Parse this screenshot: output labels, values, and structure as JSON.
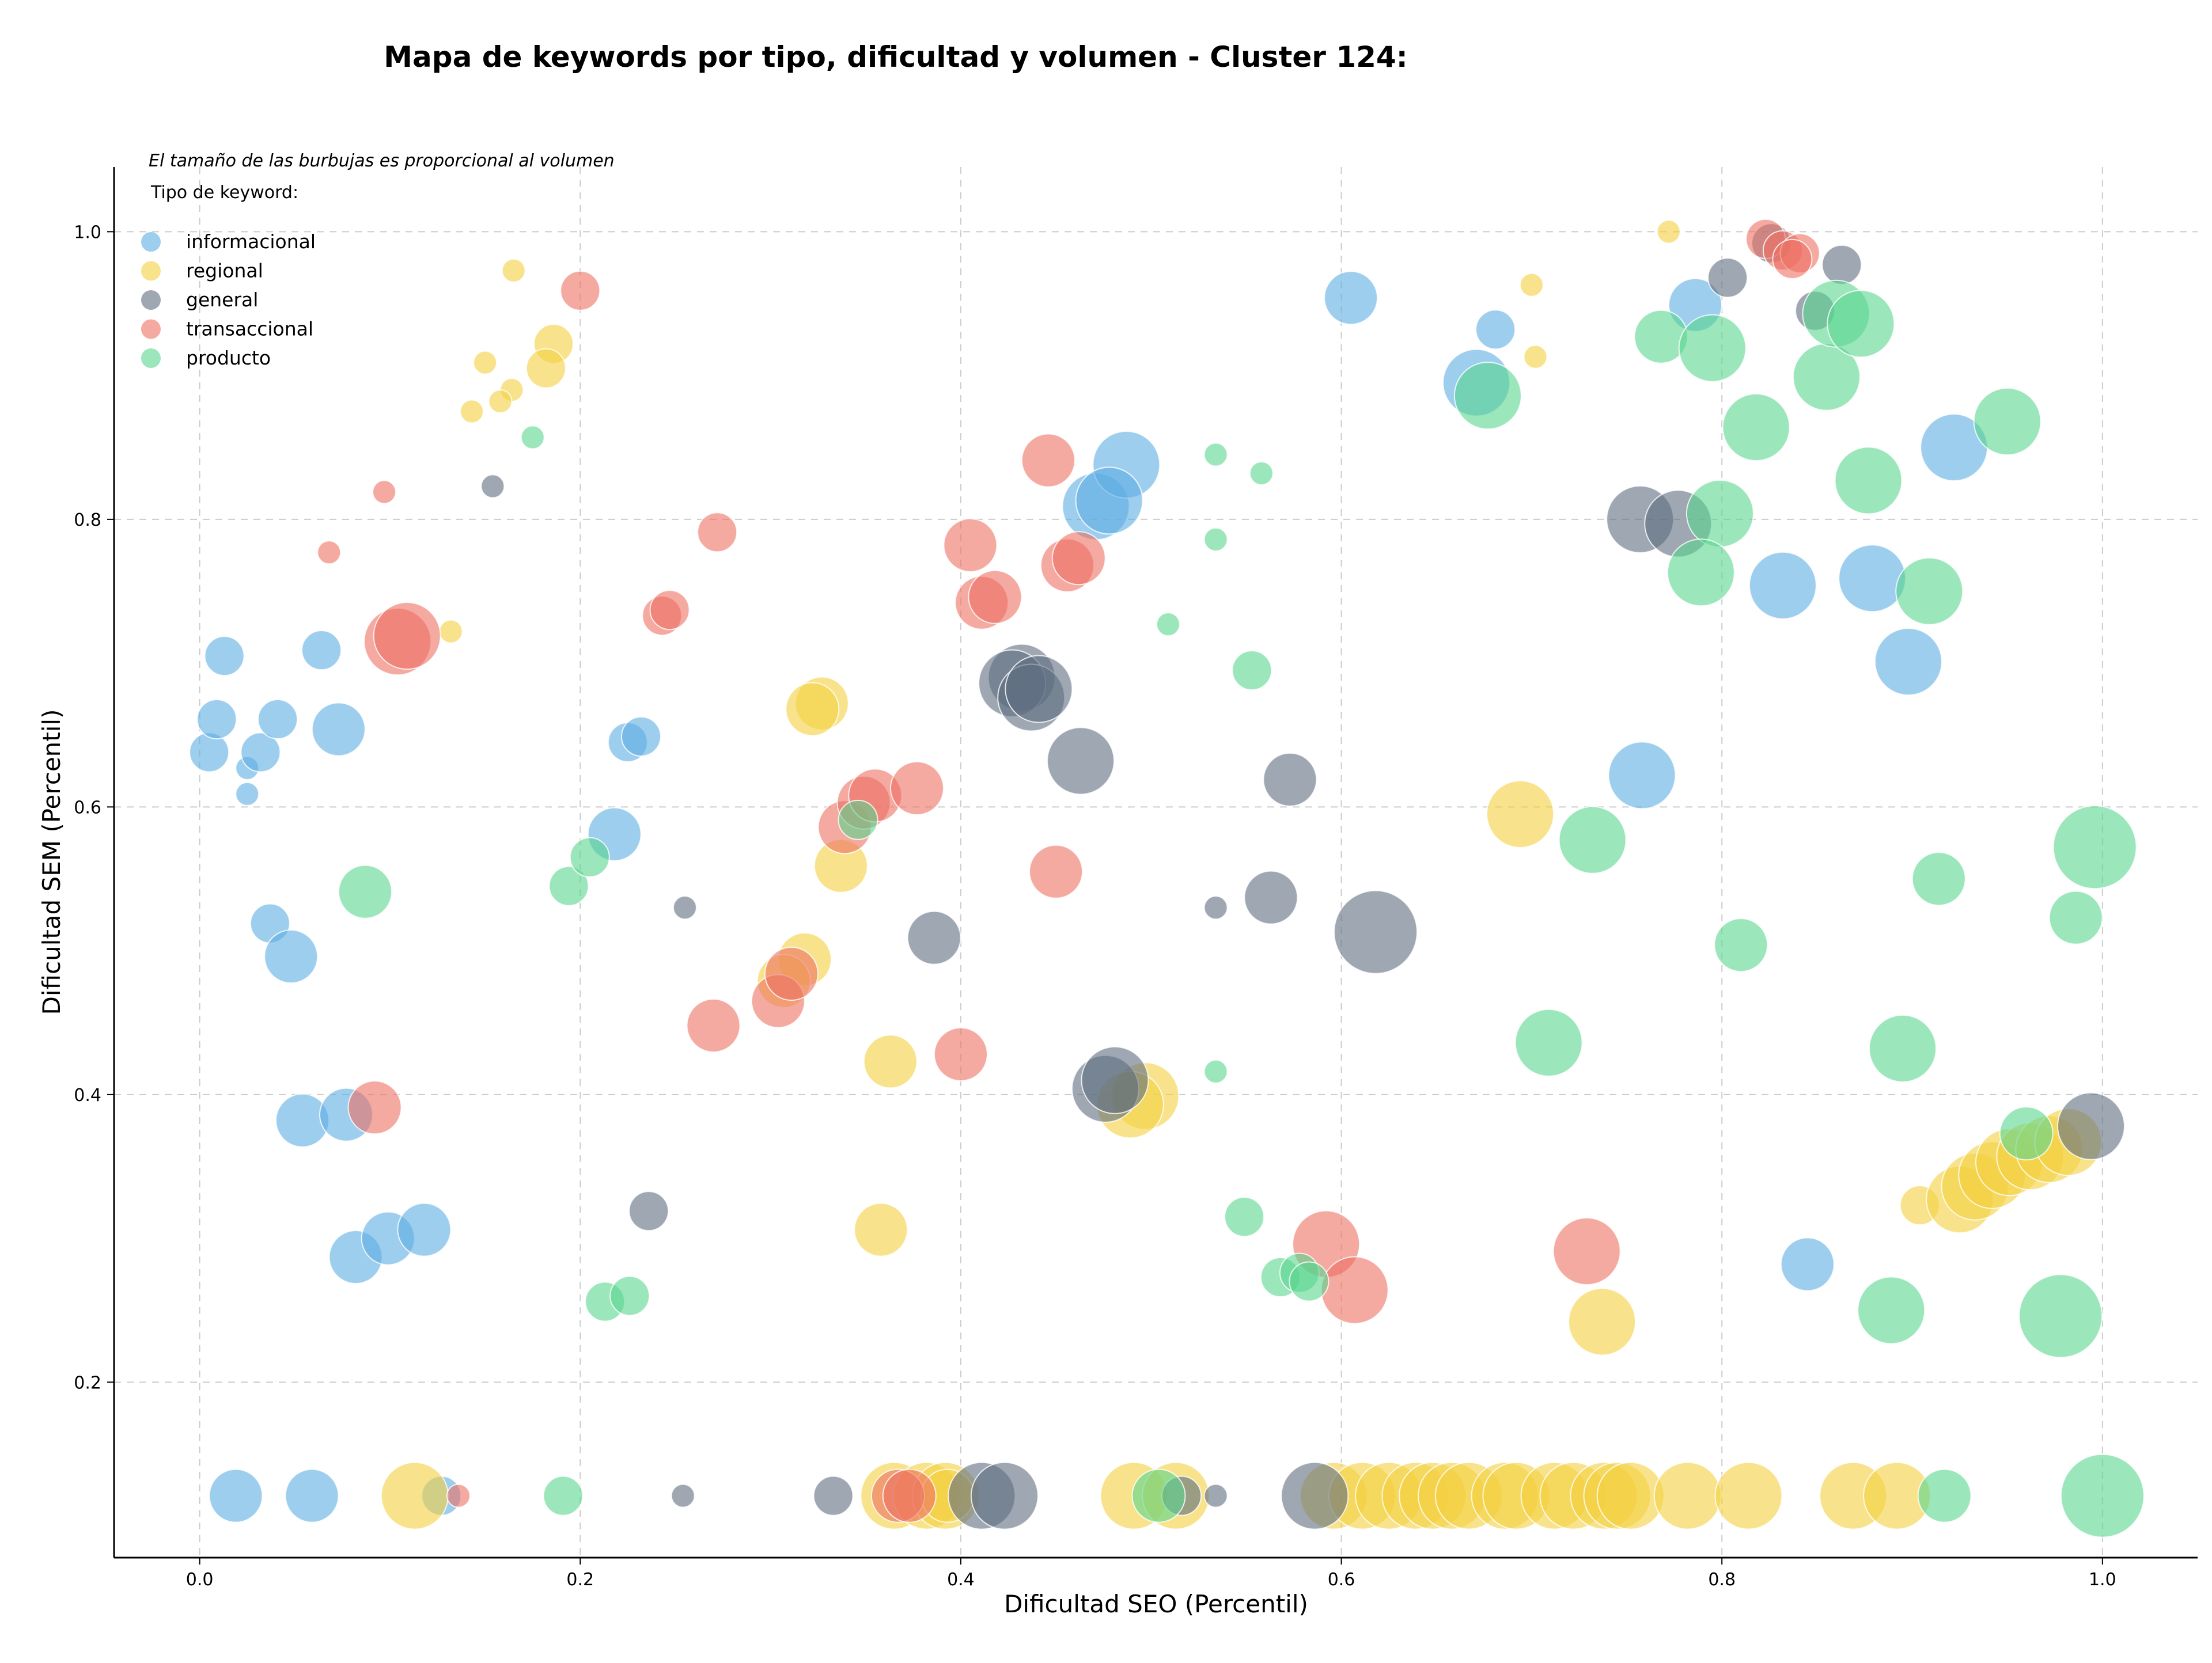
{
  "chart_data": {
    "type": "scatter",
    "title": "Mapa de keywords por tipo, dificultad y volumen - Cluster 124:",
    "annotation": "El tamaño de las burbujas es proporcional al volumen",
    "xlabel": "Dificultad SEO (Percentil)",
    "ylabel": "Dificultad SEM (Percentil)",
    "xlim": [
      -0.045,
      1.05
    ],
    "ylim": [
      0.078,
      1.045
    ],
    "xticks": [
      "0.0",
      "0.2",
      "0.4",
      "0.6",
      "0.8",
      "1.0"
    ],
    "yticks": [
      "0.2",
      "0.4",
      "0.6",
      "0.8",
      "1.0"
    ],
    "grid": true,
    "legend_title": "Tipo de keyword:",
    "legend_position": "top-left",
    "series": [
      {
        "name": "informacional",
        "color": "#5DADE2",
        "points": [
          [
            0.005,
            0.638,
            2
          ],
          [
            0.009,
            0.661,
            2
          ],
          [
            0.013,
            0.705,
            2
          ],
          [
            0.025,
            0.627,
            1
          ],
          [
            0.025,
            0.609,
            1
          ],
          [
            0.032,
            0.638,
            2
          ],
          [
            0.041,
            0.661,
            2
          ],
          [
            0.037,
            0.519,
            2
          ],
          [
            0.048,
            0.496,
            3
          ],
          [
            0.064,
            0.709,
            2
          ],
          [
            0.073,
            0.654,
            3
          ],
          [
            0.054,
            0.382,
            3
          ],
          [
            0.077,
            0.386,
            3
          ],
          [
            0.082,
            0.287,
            3
          ],
          [
            0.099,
            0.3,
            3
          ],
          [
            0.118,
            0.306,
            3
          ],
          [
            0.019,
            0.121,
            3
          ],
          [
            0.059,
            0.121,
            3
          ],
          [
            0.127,
            0.121,
            2
          ],
          [
            0.218,
            0.581,
            3
          ],
          [
            0.225,
            0.645,
            2
          ],
          [
            0.232,
            0.649,
            2
          ],
          [
            0.471,
            0.809,
            4
          ],
          [
            0.487,
            0.838,
            4
          ],
          [
            0.478,
            0.813,
            4
          ],
          [
            0.605,
            0.954,
            3
          ],
          [
            0.671,
            0.895,
            4
          ],
          [
            0.681,
            0.932,
            2
          ],
          [
            0.786,
            0.949,
            3
          ],
          [
            0.832,
            0.754,
            4
          ],
          [
            0.879,
            0.759,
            4
          ],
          [
            0.898,
            0.701,
            4
          ],
          [
            0.922,
            0.85,
            4
          ],
          [
            0.758,
            0.622,
            4
          ],
          [
            0.845,
            0.282,
            3
          ]
        ]
      },
      {
        "name": "regional",
        "color": "#F4D03F",
        "points": [
          [
            0.165,
            0.973,
            1
          ],
          [
            0.15,
            0.909,
            1
          ],
          [
            0.164,
            0.89,
            1
          ],
          [
            0.158,
            0.882,
            1
          ],
          [
            0.143,
            0.875,
            1
          ],
          [
            0.186,
            0.922,
            2
          ],
          [
            0.182,
            0.905,
            2
          ],
          [
            0.132,
            0.722,
            1
          ],
          [
            0.327,
            0.672,
            3
          ],
          [
            0.322,
            0.668,
            3
          ],
          [
            0.337,
            0.559,
            3
          ],
          [
            0.318,
            0.494,
            3
          ],
          [
            0.307,
            0.479,
            3
          ],
          [
            0.363,
            0.423,
            3
          ],
          [
            0.358,
            0.306,
            3
          ],
          [
            0.497,
            0.399,
            4
          ],
          [
            0.489,
            0.393,
            4
          ],
          [
            0.7,
            0.963,
            1
          ],
          [
            0.702,
            0.913,
            1
          ],
          [
            0.772,
            1.0,
            1
          ],
          [
            0.694,
            0.595,
            4
          ],
          [
            0.737,
            0.242,
            4
          ],
          [
            0.904,
            0.323,
            2
          ],
          [
            0.925,
            0.327,
            4
          ],
          [
            0.933,
            0.336,
            4
          ],
          [
            0.942,
            0.344,
            4
          ],
          [
            0.951,
            0.353,
            4
          ],
          [
            0.962,
            0.357,
            4
          ],
          [
            0.972,
            0.362,
            4
          ],
          [
            0.982,
            0.367,
            4
          ],
          [
            0.113,
            0.121,
            4
          ],
          [
            0.365,
            0.121,
            4
          ],
          [
            0.382,
            0.121,
            4
          ],
          [
            0.392,
            0.121,
            4
          ],
          [
            0.393,
            0.121,
            3
          ],
          [
            0.491,
            0.121,
            4
          ],
          [
            0.513,
            0.121,
            4
          ],
          [
            0.596,
            0.121,
            4
          ],
          [
            0.611,
            0.121,
            4
          ],
          [
            0.625,
            0.121,
            4
          ],
          [
            0.639,
            0.121,
            4
          ],
          [
            0.648,
            0.121,
            4
          ],
          [
            0.658,
            0.121,
            4
          ],
          [
            0.667,
            0.121,
            4
          ],
          [
            0.686,
            0.121,
            4
          ],
          [
            0.692,
            0.121,
            4
          ],
          [
            0.712,
            0.121,
            4
          ],
          [
            0.722,
            0.121,
            4
          ],
          [
            0.738,
            0.121,
            4
          ],
          [
            0.745,
            0.121,
            4
          ],
          [
            0.752,
            0.121,
            4
          ],
          [
            0.782,
            0.121,
            4
          ],
          [
            0.814,
            0.121,
            4
          ],
          [
            0.869,
            0.121,
            4
          ],
          [
            0.892,
            0.121,
            4
          ]
        ]
      },
      {
        "name": "general",
        "color": "#5D6D7E",
        "points": [
          [
            0.154,
            0.823,
            1
          ],
          [
            0.255,
            0.53,
            1
          ],
          [
            0.236,
            0.319,
            2
          ],
          [
            0.386,
            0.509,
            3
          ],
          [
            0.432,
            0.69,
            4
          ],
          [
            0.427,
            0.686,
            4
          ],
          [
            0.437,
            0.676,
            4
          ],
          [
            0.441,
            0.682,
            4
          ],
          [
            0.463,
            0.632,
            4
          ],
          [
            0.476,
            0.404,
            4
          ],
          [
            0.481,
            0.41,
            4
          ],
          [
            0.534,
            0.53,
            1
          ],
          [
            0.563,
            0.537,
            3
          ],
          [
            0.573,
            0.619,
            3
          ],
          [
            0.618,
            0.513,
            5
          ],
          [
            0.757,
            0.8,
            4
          ],
          [
            0.777,
            0.797,
            4
          ],
          [
            0.803,
            0.968,
            2
          ],
          [
            0.826,
            0.992,
            2
          ],
          [
            0.849,
            0.945,
            2
          ],
          [
            0.863,
            0.977,
            2
          ],
          [
            0.994,
            0.378,
            4
          ],
          [
            0.254,
            0.121,
            1
          ],
          [
            0.333,
            0.121,
            2
          ],
          [
            0.411,
            0.121,
            4
          ],
          [
            0.423,
            0.121,
            4
          ],
          [
            0.516,
            0.121,
            2
          ],
          [
            0.534,
            0.121,
            1
          ],
          [
            0.586,
            0.121,
            4
          ]
        ]
      },
      {
        "name": "transaccional",
        "color": "#EC7063",
        "points": [
          [
            0.097,
            0.819,
            1
          ],
          [
            0.068,
            0.777,
            1
          ],
          [
            0.2,
            0.959,
            2
          ],
          [
            0.104,
            0.715,
            4
          ],
          [
            0.109,
            0.719,
            4
          ],
          [
            0.272,
            0.791,
            2
          ],
          [
            0.243,
            0.733,
            2
          ],
          [
            0.247,
            0.737,
            2
          ],
          [
            0.304,
            0.465,
            3
          ],
          [
            0.27,
            0.448,
            3
          ],
          [
            0.311,
            0.484,
            3
          ],
          [
            0.339,
            0.586,
            3
          ],
          [
            0.349,
            0.603,
            3
          ],
          [
            0.355,
            0.608,
            3
          ],
          [
            0.377,
            0.613,
            3
          ],
          [
            0.405,
            0.782,
            3
          ],
          [
            0.411,
            0.742,
            3
          ],
          [
            0.418,
            0.746,
            3
          ],
          [
            0.4,
            0.428,
            3
          ],
          [
            0.446,
            0.841,
            3
          ],
          [
            0.456,
            0.768,
            3
          ],
          [
            0.462,
            0.773,
            3
          ],
          [
            0.45,
            0.555,
            3
          ],
          [
            0.092,
            0.391,
            3
          ],
          [
            0.592,
            0.296,
            4
          ],
          [
            0.607,
            0.264,
            4
          ],
          [
            0.729,
            0.291,
            4
          ],
          [
            0.823,
            0.995,
            2
          ],
          [
            0.832,
            0.987,
            2
          ],
          [
            0.841,
            0.985,
            2
          ],
          [
            0.837,
            0.981,
            2
          ],
          [
            0.136,
            0.121,
            1
          ],
          [
            0.367,
            0.121,
            3
          ],
          [
            0.373,
            0.121,
            3
          ]
        ]
      },
      {
        "name": "producto",
        "color": "#58D68D",
        "points": [
          [
            0.175,
            0.857,
            1
          ],
          [
            0.087,
            0.541,
            3
          ],
          [
            0.194,
            0.545,
            2
          ],
          [
            0.205,
            0.565,
            2
          ],
          [
            0.213,
            0.256,
            2
          ],
          [
            0.226,
            0.26,
            2
          ],
          [
            0.346,
            0.591,
            2
          ],
          [
            0.509,
            0.727,
            1
          ],
          [
            0.534,
            0.845,
            1
          ],
          [
            0.558,
            0.832,
            1
          ],
          [
            0.534,
            0.786,
            1
          ],
          [
            0.553,
            0.695,
            2
          ],
          [
            0.534,
            0.416,
            1
          ],
          [
            0.549,
            0.315,
            2
          ],
          [
            0.568,
            0.273,
            2
          ],
          [
            0.578,
            0.276,
            2
          ],
          [
            0.583,
            0.27,
            2
          ],
          [
            0.677,
            0.886,
            4
          ],
          [
            0.709,
            0.436,
            4
          ],
          [
            0.732,
            0.577,
            4
          ],
          [
            0.768,
            0.927,
            3
          ],
          [
            0.795,
            0.919,
            4
          ],
          [
            0.799,
            0.804,
            4
          ],
          [
            0.789,
            0.763,
            4
          ],
          [
            0.81,
            0.504,
            3
          ],
          [
            0.818,
            0.864,
            4
          ],
          [
            0.855,
            0.899,
            4
          ],
          [
            0.86,
            0.943,
            4
          ],
          [
            0.873,
            0.936,
            4
          ],
          [
            0.877,
            0.827,
            4
          ],
          [
            0.889,
            0.25,
            4
          ],
          [
            0.895,
            0.432,
            4
          ],
          [
            0.909,
            0.75,
            4
          ],
          [
            0.914,
            0.55,
            3
          ],
          [
            0.95,
            0.868,
            4
          ],
          [
            0.96,
            0.373,
            3
          ],
          [
            0.986,
            0.523,
            3
          ],
          [
            0.996,
            0.572,
            5
          ],
          [
            0.978,
            0.246,
            5
          ],
          [
            0.191,
            0.121,
            2
          ],
          [
            0.504,
            0.121,
            3
          ],
          [
            0.917,
            0.121,
            3
          ],
          [
            1.0,
            0.121,
            5
          ]
        ]
      }
    ]
  }
}
